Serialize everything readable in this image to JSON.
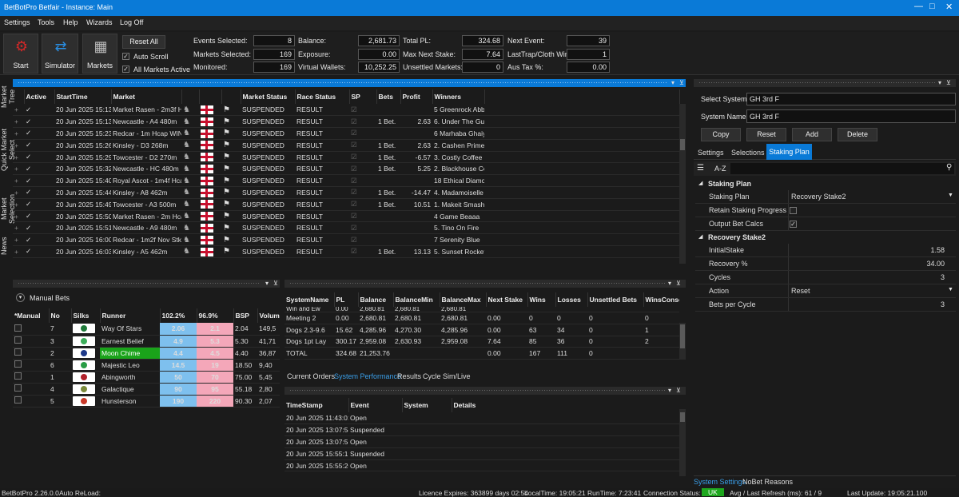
{
  "app": {
    "title": "BetBotPro Betfair - Instance: Main"
  },
  "menu": [
    "Settings",
    "Tools",
    "Help",
    "Wizards",
    "Log Off"
  ],
  "toolbar": {
    "start_label": "Start",
    "simulator_label": "Simulator",
    "markets_label": "Markets",
    "reset_all_label": "Reset All",
    "auto_scroll_label": "Auto Scroll",
    "all_markets_active_label": "All Markets Active",
    "stats": [
      {
        "label": "Events Selected:",
        "value": "8"
      },
      {
        "label": "Markets Selected:",
        "value": "169"
      },
      {
        "label": "Monitored:",
        "value": "169"
      },
      {
        "label": "Balance:",
        "value": "2,681.73"
      },
      {
        "label": "Exposure:",
        "value": "0.00"
      },
      {
        "label": "Virtual Wallets:",
        "value": "10,252.25"
      },
      {
        "label": "Total PL:",
        "value": "324.68"
      },
      {
        "label": "Max Next Stake:",
        "value": "7.64"
      },
      {
        "label": "Unsettled Markets:",
        "value": "0"
      },
      {
        "label": "Next Event:",
        "value": "39"
      },
      {
        "label": "LastTrap/Cloth Win:",
        "value": "1"
      },
      {
        "label": "Aus Tax %:",
        "value": "0.00"
      }
    ]
  },
  "side_tabs": [
    "Market Tree",
    "Quick Market Select",
    "Market Selection",
    "News"
  ],
  "markets": {
    "headers": [
      "Active",
      "StartTime",
      "Market",
      "Market Status",
      "Race Status",
      "SP",
      "Bets",
      "Profit",
      "Winners"
    ],
    "rows": [
      {
        "start": "20 Jun 2025 15:13",
        "market": "Market Rasen - 2m3f H",
        "status": "SUSPENDED",
        "race": "RESULT",
        "bets": "",
        "profit": "",
        "pclass": "",
        "winner": "5 Greenrock Abbey"
      },
      {
        "start": "20 Jun 2025 15:13",
        "market": "Newcastle - A4 480m",
        "status": "SUSPENDED",
        "race": "RESULT",
        "bets": "1 Bet.",
        "profit": "2.63",
        "pclass": "green",
        "winner": "6. Under The Gun"
      },
      {
        "start": "20 Jun 2025 15:23",
        "market": "Redcar - 1m Hcap WIN",
        "status": "SUSPENDED",
        "race": "RESULT",
        "bets": "",
        "profit": "",
        "pclass": "",
        "winner": "6 Marhaba Ghaiyyath"
      },
      {
        "start": "20 Jun 2025 15:26",
        "market": "Kinsley - D3 268m",
        "status": "SUSPENDED",
        "race": "RESULT",
        "bets": "1 Bet.",
        "profit": "2.63",
        "pclass": "green",
        "winner": "2. Cashen Primetime"
      },
      {
        "start": "20 Jun 2025 15:29",
        "market": "Towcester - D2 270m",
        "status": "SUSPENDED",
        "race": "RESULT",
        "bets": "1 Bet.",
        "profit": "-6.57",
        "pclass": "red",
        "winner": "3. Costly Coffee"
      },
      {
        "start": "20 Jun 2025 15:32",
        "market": "Newcastle - HC 480m",
        "status": "SUSPENDED",
        "race": "RESULT",
        "bets": "1 Bet.",
        "profit": "5.25",
        "pclass": "green",
        "winner": "2. Blackhouse Conni"
      },
      {
        "start": "20 Jun 2025 15:40",
        "market": "Royal Ascot - 1m4f Hca",
        "status": "SUSPENDED",
        "race": "RESULT",
        "bets": "",
        "profit": "",
        "pclass": "",
        "winner": "18 Ethical Diamond"
      },
      {
        "start": "20 Jun 2025 15:44",
        "market": "Kinsley - A8 462m",
        "status": "SUSPENDED",
        "race": "RESULT",
        "bets": "1 Bet.",
        "profit": "-14.47",
        "pclass": "red",
        "winner": "4. Madamoiselle"
      },
      {
        "start": "20 Jun 2025 15:49",
        "market": "Towcester - A3 500m",
        "status": "SUSPENDED",
        "race": "RESULT",
        "bets": "1 Bet.",
        "profit": "10.51",
        "pclass": "green",
        "winner": "1. Makeit Smasher"
      },
      {
        "start": "20 Jun 2025 15:50",
        "market": "Market Rasen - 2m Hca",
        "status": "SUSPENDED",
        "race": "RESULT",
        "bets": "",
        "profit": "",
        "pclass": "",
        "winner": "4 Game Beaaa"
      },
      {
        "start": "20 Jun 2025 15:51",
        "market": "Newcastle - A9 480m",
        "status": "SUSPENDED",
        "race": "RESULT",
        "bets": "",
        "profit": "",
        "pclass": "",
        "winner": "5. Tino On Fire"
      },
      {
        "start": "20 Jun 2025 16:00",
        "market": "Redcar - 1m2f Nov Stks",
        "status": "SUSPENDED",
        "race": "RESULT",
        "bets": "",
        "profit": "",
        "pclass": "",
        "winner": "7 Serenity Blue"
      },
      {
        "start": "20 Jun 2025 16:03",
        "market": "Kinsley - A5 462m",
        "status": "SUSPENDED",
        "race": "RESULT",
        "bets": "1 Bet.",
        "profit": "13.13",
        "pclass": "green",
        "winner": "5. Sunset Rocket"
      }
    ]
  },
  "manual": {
    "title": "Manual Bets",
    "headers": [
      "*Manual",
      "No",
      "Silks",
      "Runner",
      "102.2%",
      "96.9%",
      "BSP",
      "Volume"
    ],
    "rows": [
      {
        "no": "7",
        "runner": "Way Of Stars",
        "back": "2.06",
        "lay": "2.1",
        "bsp": "2.04",
        "vol": "149,5",
        "silk": "#1f7a3a",
        "hl": false
      },
      {
        "no": "3",
        "runner": "Earnest Belief",
        "back": "4.9",
        "lay": "5.3",
        "bsp": "5.30",
        "vol": "41,71",
        "silk": "#3cae5a",
        "hl": false
      },
      {
        "no": "2",
        "runner": "Moon Chime",
        "back": "4.4",
        "lay": "4.5",
        "bsp": "4.40",
        "vol": "36,87",
        "silk": "#1e3a8a",
        "hl": true
      },
      {
        "no": "6",
        "runner": "Majestic Leo",
        "back": "14.5",
        "lay": "19",
        "bsp": "18.50",
        "vol": "9,40",
        "silk": "#2a9d46",
        "hl": false
      },
      {
        "no": "1",
        "runner": "Abingworth",
        "back": "50",
        "lay": "70",
        "bsp": "75.00",
        "vol": "5,45",
        "silk": "#b0202a",
        "hl": false
      },
      {
        "no": "4",
        "runner": "Galactique",
        "back": "90",
        "lay": "95",
        "bsp": "55.18",
        "vol": "2,80",
        "silk": "#7b8a3a",
        "hl": false
      },
      {
        "no": "5",
        "runner": "Hunsterson",
        "back": "190",
        "lay": "220",
        "bsp": "90.30",
        "vol": "2,07",
        "silk": "#c93a2a",
        "hl": false
      }
    ]
  },
  "perf": {
    "headers": [
      "SystemName",
      "PL",
      "Balance",
      "BalanceMin",
      "BalanceMax",
      "Next Stake",
      "Wins",
      "Losses",
      "Unsettled Bets",
      "WinsConse"
    ],
    "partial": [
      "Win and Ew",
      "0.00",
      "2,680.81",
      "2,680.81",
      "2,680.81"
    ],
    "rows": [
      [
        "Meeting 2",
        "0.00",
        "2,680.81",
        "2,680.81",
        "2,680.81",
        "0.00",
        "0",
        "0",
        "0",
        "0"
      ],
      [
        "Dogs 2.3-9.6",
        "15.62",
        "4,285.96",
        "4,270.30",
        "4,285.96",
        "0.00",
        "63",
        "34",
        "0",
        "1"
      ],
      [
        "Dogs 1pt Lay",
        "300.17",
        "2,959.08",
        "2,630.93",
        "2,959.08",
        "7.64",
        "85",
        "36",
        "0",
        "2"
      ],
      [
        "TOTAL",
        "324.68",
        "21,253.76",
        "",
        "",
        "0.00",
        "167",
        "111",
        "0",
        ""
      ]
    ],
    "tabs": [
      "Current Orders",
      "System Performance",
      "Results",
      "Cycle Sim/Live"
    ]
  },
  "events": {
    "headers": [
      "TimeStamp",
      "Event",
      "System",
      "Details"
    ],
    "rows": [
      [
        "20 Jun 2025 11:43:01",
        "Open"
      ],
      [
        "20 Jun 2025 13:07:54",
        "Suspended"
      ],
      [
        "20 Jun 2025 13:07:55",
        "Open"
      ],
      [
        "20 Jun 2025 15:55:19",
        "Suspended"
      ],
      [
        "20 Jun 2025 15:55:20",
        "Open"
      ]
    ]
  },
  "system": {
    "select_label": "Select System:",
    "select_value": "GH 3rd F",
    "name_label": "System Name:",
    "name_value": "GH 3rd F",
    "copy_label": "Copy",
    "reset_label": "Reset",
    "add_label": "Add",
    "delete_label": "Delete",
    "tabs": [
      "Settings",
      "Selections",
      "Staking Plan"
    ],
    "az_label": "A-Z",
    "cat1": "Staking Plan",
    "cat2": "Recovery Stake2",
    "props1": [
      {
        "k": "Staking Plan",
        "v": "Recovery Stake2"
      },
      {
        "k": "Retain Staking Progress",
        "v": ""
      },
      {
        "k": "Output Bet Calcs",
        "v": ""
      }
    ],
    "props2": [
      {
        "k": "InitialStake",
        "v": "1.58"
      },
      {
        "k": "Recovery %",
        "v": "34.00"
      },
      {
        "k": "Cycles",
        "v": "3"
      },
      {
        "k": "Action",
        "v": "Reset"
      },
      {
        "k": "Bets per Cycle",
        "v": "3"
      }
    ],
    "bottom_tabs": [
      "System Settings",
      "NoBet Reasons"
    ]
  },
  "status": {
    "version": "BetBotPro 2.26.0.0",
    "autoreload": "Auto ReLoad:",
    "licence": "Licence Expires: 363899 days 02:54",
    "local": "LocalTime: 19:05:21",
    "runtime": "RunTime: 7:23:41",
    "conn_label": "Connection Status:",
    "conn_value": "UK",
    "refresh": "Avg / Last Refresh (ms): 61 / 9",
    "update": "Last Update: 19:05:21.100"
  }
}
